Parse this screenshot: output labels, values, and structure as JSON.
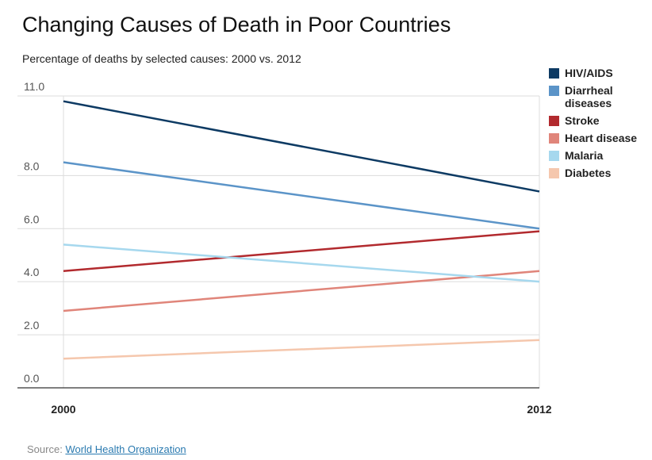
{
  "chart_data": {
    "type": "line",
    "title": "Changing Causes of Death in Poor Countries",
    "subtitle": "Percentage of deaths by selected causes: 2000 vs. 2012",
    "x": [
      "2000",
      "2012"
    ],
    "ylim": [
      0,
      11
    ],
    "yticks": [
      "0.0",
      "2.0",
      "4.0",
      "6.0",
      "8.0",
      "11.0"
    ],
    "ytick_values": [
      0,
      2,
      4,
      6,
      8,
      11
    ],
    "grid": true,
    "legend_position": "right",
    "series": [
      {
        "name": "HIV/AIDS",
        "color": "#0d3a63",
        "values": [
          10.8,
          7.4
        ]
      },
      {
        "name": "Diarrheal diseases",
        "color": "#5b94c8",
        "values": [
          8.5,
          6.0
        ]
      },
      {
        "name": "Stroke",
        "color": "#b22a2e",
        "values": [
          4.4,
          5.9
        ]
      },
      {
        "name": "Heart disease",
        "color": "#e0857a",
        "values": [
          2.9,
          4.4
        ]
      },
      {
        "name": "Malaria",
        "color": "#a6d8ee",
        "values": [
          5.4,
          4.0
        ]
      },
      {
        "name": "Diabetes",
        "color": "#f5c7ad",
        "values": [
          1.1,
          1.8
        ]
      }
    ]
  },
  "source": {
    "label": "Source:",
    "link": "World Health Organization"
  }
}
